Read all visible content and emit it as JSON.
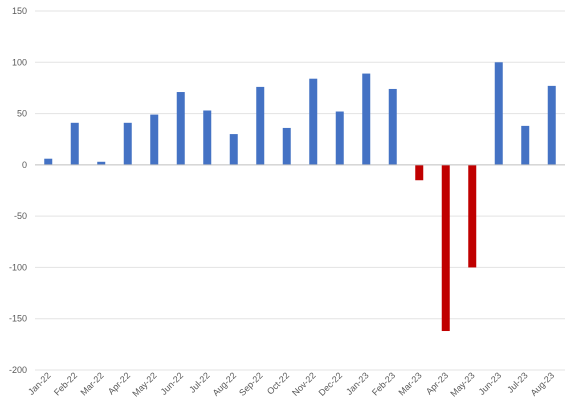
{
  "chart_data": {
    "type": "bar",
    "title": "",
    "xlabel": "",
    "ylabel": "",
    "ylim": [
      -200,
      150
    ],
    "yticks": [
      150,
      100,
      50,
      0,
      -50,
      -100,
      -150,
      -200
    ],
    "grid": true,
    "legend": "none",
    "categories": [
      "Jan-22",
      "Feb-22",
      "Mar-22",
      "Apr-22",
      "May-22",
      "Jun-22",
      "Jul-22",
      "Aug-22",
      "Sep-22",
      "Oct-22",
      "Nov-22",
      "Dec-22",
      "Jan-23",
      "Feb-23",
      "Mar-23",
      "Apr-23",
      "May-23",
      "Jun-23",
      "Jul-23",
      "Aug-23"
    ],
    "values": [
      6,
      41,
      3,
      41,
      49,
      71,
      53,
      30,
      76,
      36,
      84,
      52,
      89,
      74,
      -15,
      -162,
      -100,
      100,
      38,
      77
    ],
    "colors": {
      "positive": "#4472c4",
      "negative": "#c00000"
    }
  }
}
